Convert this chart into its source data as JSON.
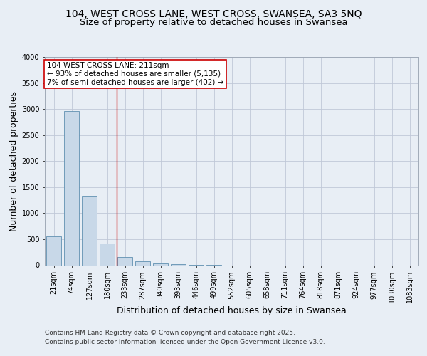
{
  "title1": "104, WEST CROSS LANE, WEST CROSS, SWANSEA, SA3 5NQ",
  "title2": "Size of property relative to detached houses in Swansea",
  "xlabel": "Distribution of detached houses by size in Swansea",
  "ylabel": "Number of detached properties",
  "categories": [
    "21sqm",
    "74sqm",
    "127sqm",
    "180sqm",
    "233sqm",
    "287sqm",
    "340sqm",
    "393sqm",
    "446sqm",
    "499sqm",
    "552sqm",
    "605sqm",
    "658sqm",
    "711sqm",
    "764sqm",
    "818sqm",
    "871sqm",
    "924sqm",
    "977sqm",
    "1030sqm",
    "1083sqm"
  ],
  "values": [
    560,
    2960,
    1340,
    420,
    160,
    80,
    40,
    20,
    10,
    5,
    0,
    0,
    0,
    0,
    0,
    0,
    0,
    0,
    0,
    0,
    0
  ],
  "bar_color": "#c8d8e8",
  "bar_edge_color": "#6090b0",
  "grid_color": "#c0c8d8",
  "bg_color": "#e8eef5",
  "annotation_box_color": "#ffffff",
  "annotation_border_color": "#cc0000",
  "annotation_text": "104 WEST CROSS LANE: 211sqm\n← 93% of detached houses are smaller (5,135)\n7% of semi-detached houses are larger (402) →",
  "vline_x_index": 3.55,
  "ylim": [
    0,
    4000
  ],
  "yticks": [
    0,
    500,
    1000,
    1500,
    2000,
    2500,
    3000,
    3500,
    4000
  ],
  "footer1": "Contains HM Land Registry data © Crown copyright and database right 2025.",
  "footer2": "Contains public sector information licensed under the Open Government Licence v3.0.",
  "title_fontsize": 10,
  "subtitle_fontsize": 9.5,
  "axis_label_fontsize": 9,
  "tick_fontsize": 7,
  "annotation_fontsize": 7.5,
  "footer_fontsize": 6.5
}
